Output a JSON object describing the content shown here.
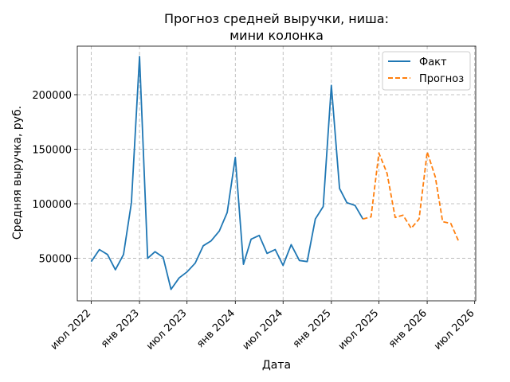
{
  "chart_data": {
    "type": "line",
    "title_lines": [
      "Прогноз средней выручки, ниша:",
      "мини колонка"
    ],
    "xlabel": "Дата",
    "ylabel": "Средняя выручка, руб.",
    "x_ticks": [
      {
        "date": "2022-07-01",
        "label": "июл 2022"
      },
      {
        "date": "2023-01-01",
        "label": "янв 2023"
      },
      {
        "date": "2023-07-01",
        "label": "июл 2023"
      },
      {
        "date": "2024-01-01",
        "label": "янв 2024"
      },
      {
        "date": "2024-07-01",
        "label": "июл 2024"
      },
      {
        "date": "2025-01-01",
        "label": "янв 2025"
      },
      {
        "date": "2025-07-01",
        "label": "июл 2025"
      },
      {
        "date": "2026-01-01",
        "label": "янв 2026"
      },
      {
        "date": "2026-07-01",
        "label": "июл 2026"
      }
    ],
    "y_ticks": [
      50000,
      100000,
      150000,
      200000
    ],
    "xlim": [
      "2022-05-09",
      "2026-07-05"
    ],
    "ylim": [
      11000,
      244500
    ],
    "grid": true,
    "legend_position": "top-right",
    "series": [
      {
        "name": "Факт",
        "color": "#1f77b4",
        "style": "solid",
        "points": [
          [
            "2022-07-01",
            47000
          ],
          [
            "2022-08-01",
            58000
          ],
          [
            "2022-09-01",
            53500
          ],
          [
            "2022-10-01",
            39500
          ],
          [
            "2022-11-01",
            53500
          ],
          [
            "2022-12-01",
            101000
          ],
          [
            "2023-01-01",
            235000
          ],
          [
            "2023-02-01",
            50000
          ],
          [
            "2023-03-01",
            56000
          ],
          [
            "2023-04-01",
            51000
          ],
          [
            "2023-05-01",
            21500
          ],
          [
            "2023-06-01",
            32000
          ],
          [
            "2023-07-01",
            37500
          ],
          [
            "2023-08-01",
            45500
          ],
          [
            "2023-09-01",
            61500
          ],
          [
            "2023-10-01",
            66000
          ],
          [
            "2023-11-01",
            75000
          ],
          [
            "2023-12-01",
            92000
          ],
          [
            "2024-01-01",
            142500
          ],
          [
            "2024-02-01",
            44500
          ],
          [
            "2024-03-01",
            67500
          ],
          [
            "2024-04-01",
            71000
          ],
          [
            "2024-05-01",
            54500
          ],
          [
            "2024-06-01",
            58000
          ],
          [
            "2024-07-01",
            43500
          ],
          [
            "2024-08-01",
            62500
          ],
          [
            "2024-09-01",
            48000
          ],
          [
            "2024-10-01",
            47000
          ],
          [
            "2024-11-01",
            86000
          ],
          [
            "2024-12-01",
            97500
          ],
          [
            "2025-01-01",
            208500
          ],
          [
            "2025-02-01",
            114000
          ],
          [
            "2025-03-01",
            101000
          ],
          [
            "2025-04-01",
            98500
          ],
          [
            "2025-05-01",
            86000
          ]
        ]
      },
      {
        "name": "Прогноз",
        "color": "#ff7f0e",
        "style": "dashed",
        "points": [
          [
            "2025-05-01",
            86000
          ],
          [
            "2025-06-01",
            88000
          ],
          [
            "2025-07-01",
            146500
          ],
          [
            "2025-08-01",
            128000
          ],
          [
            "2025-09-01",
            87500
          ],
          [
            "2025-10-01",
            89500
          ],
          [
            "2025-11-01",
            77500
          ],
          [
            "2025-12-01",
            86000
          ],
          [
            "2026-01-01",
            147500
          ],
          [
            "2026-02-01",
            124500
          ],
          [
            "2026-03-01",
            83500
          ],
          [
            "2026-04-01",
            82000
          ],
          [
            "2026-05-01",
            65500
          ]
        ]
      }
    ]
  }
}
